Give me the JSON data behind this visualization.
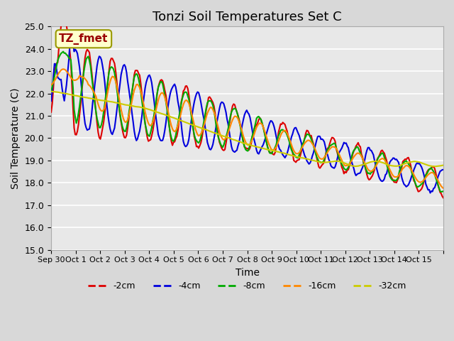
{
  "title": "Tonzi Soil Temperatures Set C",
  "xlabel": "Time",
  "ylabel": "Soil Temperature (C)",
  "ylim": [
    15.0,
    25.0
  ],
  "yticks": [
    15.0,
    16.0,
    17.0,
    18.0,
    19.0,
    20.0,
    21.0,
    22.0,
    23.0,
    24.0,
    25.0
  ],
  "xtick_labels": [
    "Sep 30",
    "Oct 1",
    "Oct 2",
    "Oct 3",
    "Oct 4",
    "Oct 5",
    "Oct 6",
    "Oct 7",
    "Oct 8",
    "Oct 9",
    "Oct 10",
    "Oct 11",
    "Oct 12",
    "Oct 13",
    "Oct 14",
    "Oct 15"
  ],
  "annotation_text": "TZ_fmet",
  "annotation_bg": "#ffffcc",
  "annotation_border": "#999900",
  "annotation_text_color": "#990000",
  "series_colors": [
    "#dd0000",
    "#0000dd",
    "#00aa00",
    "#ff8800",
    "#cccc00"
  ],
  "series_labels": [
    "-2cm",
    "-4cm",
    "-8cm",
    "-16cm",
    "-32cm"
  ],
  "plot_bg": "#e8e8e8",
  "grid_color": "#ffffff",
  "title_fontsize": 13,
  "n_points": 360,
  "line_width": 1.5
}
